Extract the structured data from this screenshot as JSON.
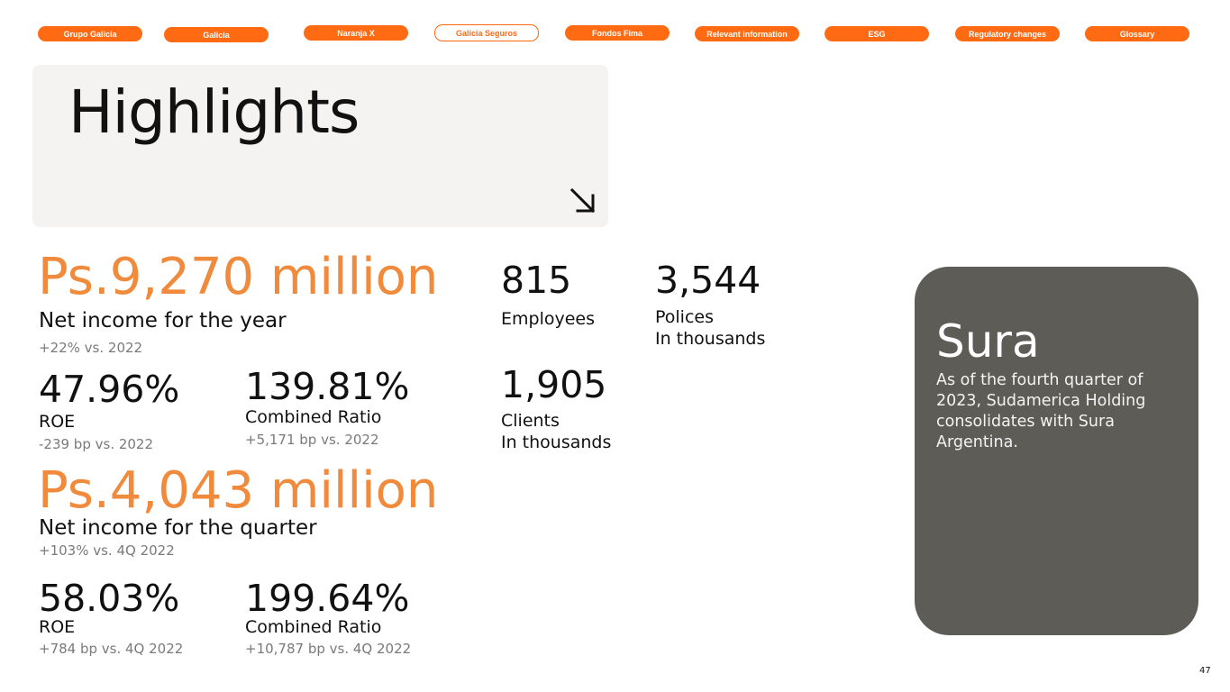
{
  "nav": {
    "items": [
      {
        "label": "Grupo Galicia"
      },
      {
        "label": "Galicia"
      },
      {
        "label": "Naranja X"
      },
      {
        "label": "Galicia Seguros",
        "active": true
      },
      {
        "label": "Fondos Fima"
      },
      {
        "label": "Relevant information"
      },
      {
        "label": "ESG"
      },
      {
        "label": "Regulatory changes"
      },
      {
        "label": "Glossary"
      }
    ]
  },
  "title": "Highlights",
  "year": {
    "value": "Ps.9,270 million",
    "label": "Net income for the year",
    "change": "+22% vs. 2022",
    "roe": {
      "value": "47.96%",
      "label": "ROE",
      "change": "-239 bp vs. 2022"
    },
    "combined_ratio": {
      "value": "139.81%",
      "label": "Combined Ratio",
      "change": "+5,171 bp vs. 2022"
    }
  },
  "quarter": {
    "value": "Ps.4,043 million",
    "label": "Net income for the quarter",
    "change": "+103% vs. 4Q 2022",
    "roe": {
      "value": "58.03%",
      "label": "ROE",
      "change": "+784 bp vs. 4Q 2022"
    },
    "combined_ratio": {
      "value": "199.64%",
      "label": "Combined Ratio",
      "change": "+10,787 bp vs. 4Q 2022"
    }
  },
  "stats": {
    "employees": {
      "value": "815",
      "label": "Employees"
    },
    "polices": {
      "value": "3,544",
      "label1": "Polices",
      "label2": "In thousands"
    },
    "clients": {
      "value": "1,905",
      "label1": "Clients",
      "label2": "In thousands"
    }
  },
  "sura": {
    "title": "Sura",
    "text": "As of the fourth quarter of 2023, Sudamerica Holding consolidates with Sura Argentina."
  },
  "page_number": "47",
  "colors": {
    "accent": "#ff6a13",
    "highlight_text": "#f08a3c",
    "card_bg": "#f4f3f1",
    "sura_bg": "#5e5c57"
  },
  "icons": {
    "title_arrow": "arrow-down-right-icon"
  }
}
